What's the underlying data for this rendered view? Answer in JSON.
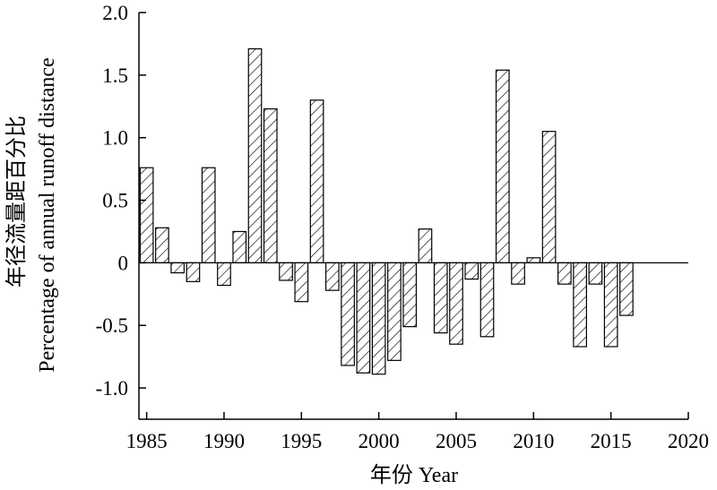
{
  "chart_data": {
    "type": "bar",
    "xlabel": "年份 Year",
    "ylabel_cn": "年径流量距百分比",
    "ylabel_en": "Percentage of annual runoff distance",
    "x": [
      1985,
      1986,
      1987,
      1988,
      1989,
      1990,
      1991,
      1992,
      1993,
      1994,
      1995,
      1996,
      1997,
      1998,
      1999,
      2000,
      2001,
      2002,
      2003,
      2004,
      2005,
      2006,
      2007,
      2008,
      2009,
      2010,
      2011,
      2012,
      2013,
      2014,
      2015,
      2016
    ],
    "values": [
      0.76,
      0.28,
      -0.08,
      -0.15,
      0.76,
      -0.18,
      0.25,
      1.71,
      1.23,
      -0.14,
      -0.31,
      1.3,
      -0.22,
      -0.82,
      -0.88,
      -0.89,
      -0.78,
      -0.51,
      0.27,
      -0.56,
      -0.65,
      -0.13,
      -0.59,
      1.54,
      -0.17,
      0.04,
      1.05,
      -0.17,
      -0.67,
      -0.17,
      -0.67,
      -0.42
    ],
    "xlim": [
      1984.5,
      2020
    ],
    "ylim": [
      -1.25,
      2.0
    ],
    "xticks": [
      1985,
      1990,
      1995,
      2000,
      2005,
      2010,
      2015,
      2020
    ],
    "xtick_labels": [
      "1985",
      "1990",
      "1995",
      "2000",
      "2005",
      "2010",
      "2015",
      "2020"
    ],
    "yticks": [
      2.0,
      1.5,
      1.0,
      0.5,
      0,
      -0.5,
      -1.0
    ],
    "ytick_labels": [
      "2.0",
      "1.5",
      "1.0",
      "0.5",
      "0",
      "-0.5",
      "-1.0"
    ],
    "bar_fill": "hatched",
    "bar_color": "#000000",
    "grid": false,
    "legend": "none"
  }
}
